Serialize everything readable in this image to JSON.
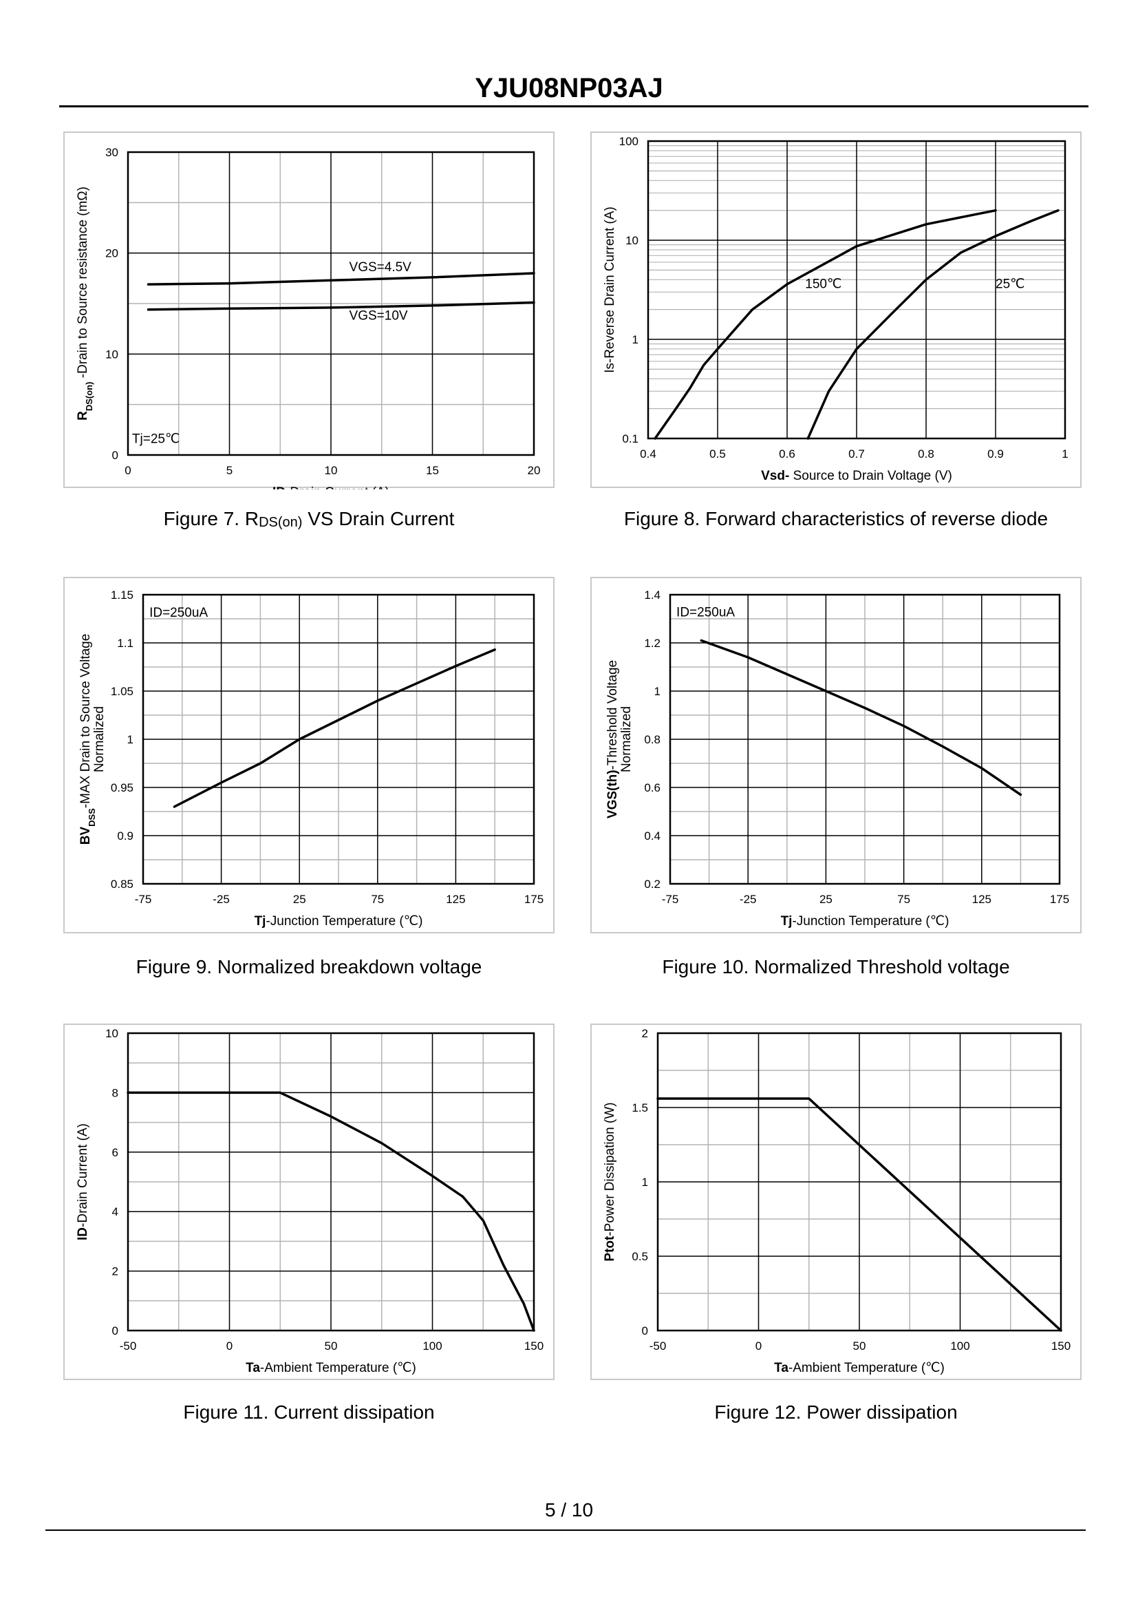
{
  "header": {
    "title": "YJU08NP03AJ"
  },
  "footer": {
    "page": "5 / 10"
  },
  "captions": {
    "fig7_prefix": "Figure 7.  R",
    "fig7_sub": "DS(on)",
    "fig7_suffix": " VS Drain Current",
    "fig8": "Figure 8.  Forward characteristics of reverse diode",
    "fig9": "Figure 9.  Normalized breakdown voltage",
    "fig10": "Figure 10.  Normalized Threshold voltage",
    "fig11": "Figure 11.  Current dissipation",
    "fig12": "Figure 12.  Power dissipation"
  },
  "chart_data": [
    {
      "id": "fig7",
      "type": "line",
      "title": "RDS(on) VS Drain Current",
      "xlabel_bold": "ID",
      "xlabel_rest": "-Drain Current  (A)",
      "ylabel_bold": "R",
      "ylabel_sub": "DS(on)",
      "ylabel_rest": " -Drain to Source resistance  (mΩ)",
      "xlim": [
        0,
        20
      ],
      "ylim": [
        0,
        30
      ],
      "yscale": "linear",
      "xticks": [
        0,
        5,
        10,
        15,
        20
      ],
      "yticks": [
        0,
        10,
        20,
        30
      ],
      "x_minor": 2,
      "y_minor": 2,
      "annotations": [
        {
          "text": "Tj=25℃",
          "x": 0.2,
          "y": 1.2
        },
        {
          "text": "VGS=4.5V",
          "x": 10.9,
          "y": 18.2
        },
        {
          "text": "VGS=10V",
          "x": 10.9,
          "y": 13.4
        }
      ],
      "series": [
        {
          "name": "VGS=4.5V",
          "x": [
            1,
            5,
            10,
            15,
            20
          ],
          "y": [
            16.9,
            17.0,
            17.3,
            17.6,
            18.0
          ]
        },
        {
          "name": "VGS=10V",
          "x": [
            1,
            5,
            10,
            15,
            20
          ],
          "y": [
            14.4,
            14.5,
            14.6,
            14.8,
            15.1
          ]
        }
      ]
    },
    {
      "id": "fig8",
      "type": "line",
      "title": "Forward characteristics of reverse diode",
      "xlabel_bold": "Vsd-",
      "xlabel_rest": " Source to Drain Voltage (V)",
      "ylabel_bold": "",
      "ylabel_sub": "",
      "ylabel_rest": "Is-Reverse  Drain Current  (A)",
      "xlim": [
        0.4,
        1.0
      ],
      "ylim": [
        0.1,
        100
      ],
      "yscale": "log",
      "xticks": [
        0.4,
        0.5,
        0.6,
        0.7,
        0.8,
        0.9,
        1
      ],
      "yticks": [
        0.1,
        1,
        10,
        100
      ],
      "x_minor": 1,
      "y_minor": 0,
      "annotations": [
        {
          "text": "150℃",
          "x": 0.626,
          "y": 3.3
        },
        {
          "text": "25℃",
          "x": 0.9,
          "y": 3.3
        }
      ],
      "series": [
        {
          "name": "150℃",
          "x": [
            0.41,
            0.44,
            0.46,
            0.48,
            0.5,
            0.55,
            0.6,
            0.7,
            0.8,
            0.9
          ],
          "y": [
            0.1,
            0.2,
            0.32,
            0.55,
            0.8,
            2.0,
            3.6,
            8.7,
            14.5,
            20
          ]
        },
        {
          "name": "25℃",
          "x": [
            0.63,
            0.66,
            0.7,
            0.75,
            0.8,
            0.85,
            0.9,
            0.95,
            0.99
          ],
          "y": [
            0.1,
            0.3,
            0.8,
            1.8,
            4.0,
            7.5,
            11,
            15.5,
            20
          ]
        }
      ]
    },
    {
      "id": "fig9",
      "type": "line",
      "title": "Normalized breakdown voltage",
      "xlabel_bold": "Tj",
      "xlabel_rest": "-Junction  Temperature  (℃)",
      "ylabel_bold": "BV",
      "ylabel_sub": "DSS",
      "ylabel_rest": "-MAX Drain to Source Voltage",
      "ylabel_line2": "Normalized",
      "xlim": [
        -75,
        175
      ],
      "ylim": [
        0.85,
        1.15
      ],
      "yscale": "linear",
      "xticks": [
        -75,
        -25,
        25,
        75,
        125,
        175
      ],
      "yticks": [
        0.85,
        0.9,
        0.95,
        1,
        1.05,
        1.1,
        1.15
      ],
      "x_minor": 2,
      "y_minor": 2,
      "annotations": [
        {
          "text": "ID=250uA",
          "x": -71,
          "y": 1.127
        }
      ],
      "series": [
        {
          "name": "BVDSS",
          "x": [
            -55,
            -25,
            0,
            25,
            50,
            75,
            100,
            125,
            150
          ],
          "y": [
            0.93,
            0.955,
            0.975,
            1.0,
            1.02,
            1.04,
            1.058,
            1.076,
            1.093
          ]
        }
      ]
    },
    {
      "id": "fig10",
      "type": "line",
      "title": "Normalized Threshold voltage",
      "xlabel_bold": "Tj",
      "xlabel_rest": "-Junction  Temperature  (℃)",
      "ylabel_bold": "VGS(th)",
      "ylabel_sub": "",
      "ylabel_rest": "-Threshold  Voltage",
      "ylabel_line2": "Normalized",
      "xlim": [
        -75,
        175
      ],
      "ylim": [
        0.2,
        1.4
      ],
      "yscale": "linear",
      "xticks": [
        -75,
        -25,
        25,
        75,
        125,
        175
      ],
      "yticks": [
        0.2,
        0.4,
        0.6,
        0.8,
        1,
        1.2,
        1.4
      ],
      "x_minor": 2,
      "y_minor": 2,
      "annotations": [
        {
          "text": "ID=250uA",
          "x": -71,
          "y": 1.31
        }
      ],
      "series": [
        {
          "name": "VGS(th)",
          "x": [
            -55,
            -25,
            0,
            25,
            50,
            75,
            100,
            125,
            150
          ],
          "y": [
            1.21,
            1.14,
            1.07,
            1.0,
            0.93,
            0.855,
            0.77,
            0.68,
            0.57
          ]
        }
      ]
    },
    {
      "id": "fig11",
      "type": "line",
      "title": "Current dissipation",
      "xlabel_bold": "Ta",
      "xlabel_rest": "-Ambient Temperature (℃)",
      "ylabel_bold": "ID",
      "ylabel_sub": "",
      "ylabel_rest": "-Drain Current (A)",
      "xlim": [
        -50,
        150
      ],
      "ylim": [
        0,
        10
      ],
      "yscale": "linear",
      "xticks": [
        -50,
        0,
        50,
        100,
        150
      ],
      "yticks": [
        0,
        2,
        4,
        6,
        8,
        10
      ],
      "x_minor": 2,
      "y_minor": 2,
      "annotations": [],
      "series": [
        {
          "name": "ID",
          "x": [
            -50,
            25,
            50,
            75,
            100,
            115,
            125,
            135,
            145,
            150
          ],
          "y": [
            8,
            8,
            7.2,
            6.3,
            5.2,
            4.5,
            3.7,
            2.2,
            0.9,
            0
          ]
        }
      ]
    },
    {
      "id": "fig12",
      "type": "line",
      "title": "Power dissipation",
      "xlabel_bold": "Ta",
      "xlabel_rest": "-Ambient Temperature (℃)",
      "ylabel_bold": "Ptot",
      "ylabel_sub": "",
      "ylabel_rest": "-Power Dissipation (W)",
      "xlim": [
        -50,
        150
      ],
      "ylim": [
        0,
        2
      ],
      "yscale": "linear",
      "xticks": [
        -50,
        0,
        50,
        100,
        150
      ],
      "yticks": [
        0,
        0.5,
        1,
        1.5,
        2
      ],
      "x_minor": 2,
      "y_minor": 2,
      "annotations": [],
      "series": [
        {
          "name": "Ptot",
          "x": [
            -50,
            25,
            150
          ],
          "y": [
            1.56,
            1.56,
            0
          ]
        }
      ]
    }
  ]
}
